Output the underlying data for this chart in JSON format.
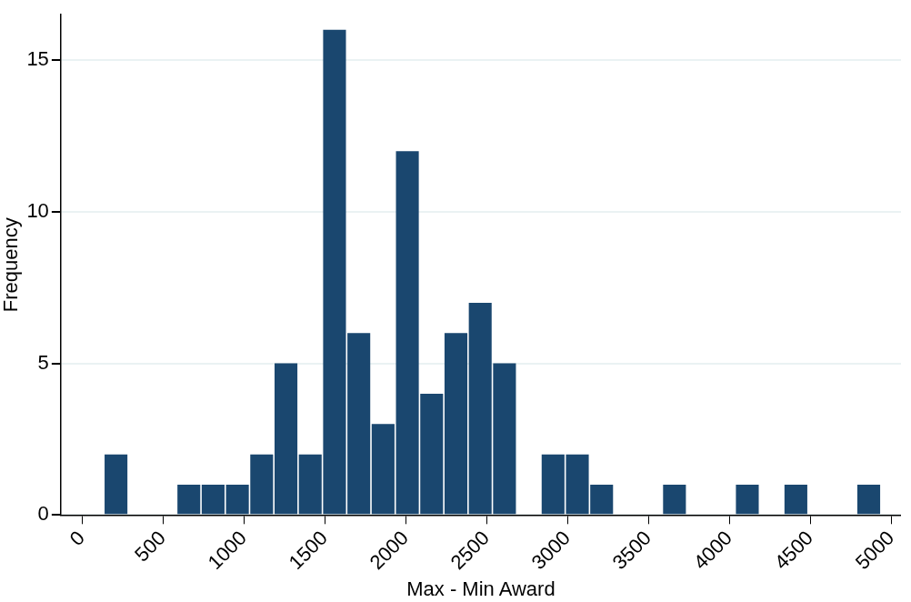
{
  "chart_data": {
    "type": "histogram",
    "xlabel": "Max - Min Award",
    "ylabel": "Frequency",
    "bins": [
      136,
      286,
      436,
      586,
      736,
      886,
      1036,
      1186,
      1336,
      1486,
      1636,
      1786,
      1936,
      2086,
      2236,
      2386,
      2536,
      2686,
      2836,
      2986,
      3136,
      3286,
      3436,
      3586,
      3736,
      3886,
      4036,
      4186,
      4336,
      4486,
      4636,
      4786,
      4936
    ],
    "values": [
      2,
      0,
      0,
      1,
      1,
      1,
      2,
      5,
      2,
      16,
      6,
      3,
      12,
      4,
      6,
      7,
      5,
      0,
      2,
      2,
      1,
      0,
      0,
      1,
      0,
      0,
      1,
      0,
      1,
      0,
      0,
      1
    ],
    "color": "#1a476f",
    "xlim": [
      -130,
      5060
    ],
    "xticks": [
      0,
      500,
      1000,
      1500,
      2000,
      2500,
      3000,
      3500,
      4000,
      4500,
      5000
    ],
    "ylim": [
      0,
      16.5
    ],
    "yticks": [
      0,
      5,
      10,
      15
    ],
    "grid": "y",
    "legend": false
  }
}
